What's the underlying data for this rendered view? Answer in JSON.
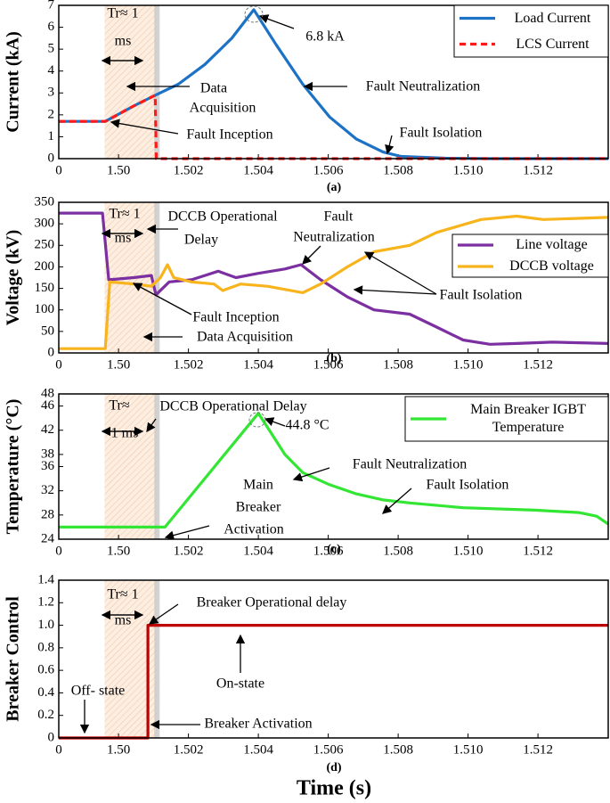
{
  "chart_data": [
    {
      "type": "line",
      "panel_label": "(a)",
      "ylabel": "Current (kA)",
      "origin_label": "0",
      "xlim": [
        1.49829,
        1.51401
      ],
      "ylim": [
        0,
        7
      ],
      "yticks": [
        0,
        1,
        2,
        3,
        4,
        5,
        6,
        7
      ],
      "xticks": [
        {
          "value": 1.5,
          "label": "1.50"
        },
        1.502,
        1.504,
        1.506,
        1.508,
        {
          "value": 1.51,
          "label": "1.510"
        },
        1.512
      ],
      "shade": [
        1.4996,
        1.5011
      ],
      "legend": "upper right",
      "series": [
        {
          "name": "Load Current",
          "color": "#1c72c4",
          "style": "solid",
          "x": [
            1.49829,
            1.49962,
            1.50043,
            1.50099,
            1.50171,
            1.50247,
            1.50324,
            1.50387,
            1.50451,
            1.50527,
            1.50604,
            1.5068,
            1.50757,
            1.50808,
            1.50935,
            1.51063,
            1.51401
          ],
          "values": [
            1.7,
            1.7,
            2.4,
            2.85,
            3.4,
            4.3,
            5.5,
            6.8,
            5.2,
            3.4,
            1.9,
            0.9,
            0.3,
            0.1,
            0.02,
            0,
            0
          ]
        },
        {
          "name": "LCS Current",
          "color": "#ff1a1a",
          "style": "dashed",
          "x": [
            1.49829,
            1.49962,
            1.50043,
            1.50099,
            1.50105,
            1.50108,
            1.51401
          ],
          "values": [
            1.7,
            1.7,
            2.4,
            2.85,
            2.9,
            0,
            0
          ]
        }
      ],
      "annotations": [
        "Tr≈ 1",
        "ms",
        "Data",
        "Acquisition",
        "Fault Inception",
        "6.8 kA",
        "Fault Neutralization",
        "Fault Isolation"
      ]
    },
    {
      "type": "line",
      "panel_label": "(b)",
      "ylabel": "Voltage (kV)",
      "origin_label": "0",
      "xlim": [
        1.49829,
        1.51401
      ],
      "ylim": [
        0,
        350
      ],
      "yticks": [
        0,
        50,
        100,
        150,
        200,
        250,
        300,
        350
      ],
      "xticks": [
        {
          "value": 1.5,
          "label": "1.50"
        },
        1.502,
        1.504,
        1.506,
        1.508,
        {
          "value": 1.51,
          "label": "1.510"
        },
        1.512
      ],
      "shade": [
        1.4996,
        1.5011
      ],
      "legend": "right",
      "series": [
        {
          "name": "Line voltage",
          "color": "#7b2fa0",
          "style": "solid",
          "x": [
            1.49829,
            1.49954,
            1.49972,
            1.50043,
            1.50094,
            1.50107,
            1.50145,
            1.50209,
            1.50247,
            1.50285,
            1.50336,
            1.504,
            1.50476,
            1.50522,
            1.50578,
            1.50655,
            1.50731,
            1.50833,
            1.5091,
            1.50986,
            1.51063,
            1.51139,
            1.51241,
            1.51401
          ],
          "values": [
            325,
            325,
            170,
            175,
            180,
            135,
            165,
            170,
            180,
            190,
            175,
            185,
            195,
            205,
            170,
            130,
            100,
            90,
            60,
            30,
            20,
            22,
            25,
            22
          ]
        },
        {
          "name": "DCCB voltage",
          "color": "#f7b41c",
          "style": "solid",
          "x": [
            1.49829,
            1.49962,
            1.49975,
            1.50043,
            1.50094,
            1.5012,
            1.5014,
            1.50158,
            1.50209,
            1.50273,
            1.50298,
            1.50349,
            1.50426,
            1.50527,
            1.50578,
            1.50655,
            1.50731,
            1.50833,
            1.5091,
            1.51037,
            1.51139,
            1.51215,
            1.51401
          ],
          "values": [
            10,
            10,
            165,
            160,
            155,
            175,
            205,
            175,
            165,
            160,
            145,
            160,
            155,
            140,
            160,
            200,
            235,
            250,
            280,
            310,
            318,
            310,
            315
          ]
        }
      ],
      "annotations": [
        "Tr≈ 1",
        "ms",
        "DCCB Operational",
        "Delay",
        "Fault",
        "Neutralization",
        "Fault Inception",
        "Data Acquisition",
        "Fault Isolation"
      ]
    },
    {
      "type": "line",
      "panel_label": "(c)",
      "ylabel": "Temperature (°C)",
      "origin_label": "0",
      "xlim": [
        1.49829,
        1.51401
      ],
      "ylim": [
        24,
        48
      ],
      "yticks": [
        24,
        28,
        32,
        36,
        38,
        42,
        46,
        48
      ],
      "xticks": [
        {
          "value": 1.5,
          "label": "1.50"
        },
        1.502,
        1.504,
        1.506,
        1.508,
        {
          "value": 1.51,
          "label": "1.510"
        },
        1.512
      ],
      "shade": [
        1.4996,
        1.5011
      ],
      "legend": "upper right",
      "series": [
        {
          "name": "Main Breaker IGBT Temperature",
          "color": "#33e633",
          "style": "solid",
          "x": [
            1.49829,
            1.50133,
            1.504,
            1.50426,
            1.50476,
            1.50527,
            1.50604,
            1.5068,
            1.50757,
            1.50833,
            1.50986,
            1.5119,
            1.51317,
            1.51368,
            1.51401
          ],
          "values": [
            26,
            26,
            44.8,
            42.5,
            38,
            35,
            33,
            31.5,
            30.5,
            30,
            29.2,
            28.8,
            28.4,
            27.8,
            26.5
          ]
        }
      ],
      "annotations": [
        "Tr≈",
        "1 ms",
        "DCCB Operational Delay",
        "44.8 °C",
        "Main",
        "Breaker",
        "Activation",
        "Fault Neutralization",
        "Fault Isolation"
      ]
    },
    {
      "type": "line",
      "panel_label": "(d)",
      "ylabel": "Breaker Control",
      "xlabel": "Time (s)",
      "origin_label": "0",
      "xlim": [
        1.49829,
        1.51401
      ],
      "ylim": [
        0,
        1.4
      ],
      "yticks": [
        0,
        0.2,
        0.4,
        0.6,
        0.8,
        {
          "value": 1,
          "label": "1.0"
        },
        1.2,
        1.4
      ],
      "xticks": [
        {
          "value": 1.5,
          "label": "1.50"
        },
        1.502,
        1.504,
        1.506,
        1.508,
        {
          "value": 1.51,
          "label": "1.510"
        },
        1.512
      ],
      "shade": [
        1.4996,
        1.5011
      ],
      "series": [
        {
          "color": "#c00000",
          "style": "solid",
          "x": [
            1.49829,
            1.50084,
            1.50084,
            1.51401
          ],
          "values": [
            0,
            0,
            1,
            1
          ]
        }
      ],
      "annotations": [
        "Tr≈ 1",
        "ms",
        "Breaker Operational delay",
        "On-state",
        "Off- state",
        "Breaker Activation"
      ]
    }
  ]
}
